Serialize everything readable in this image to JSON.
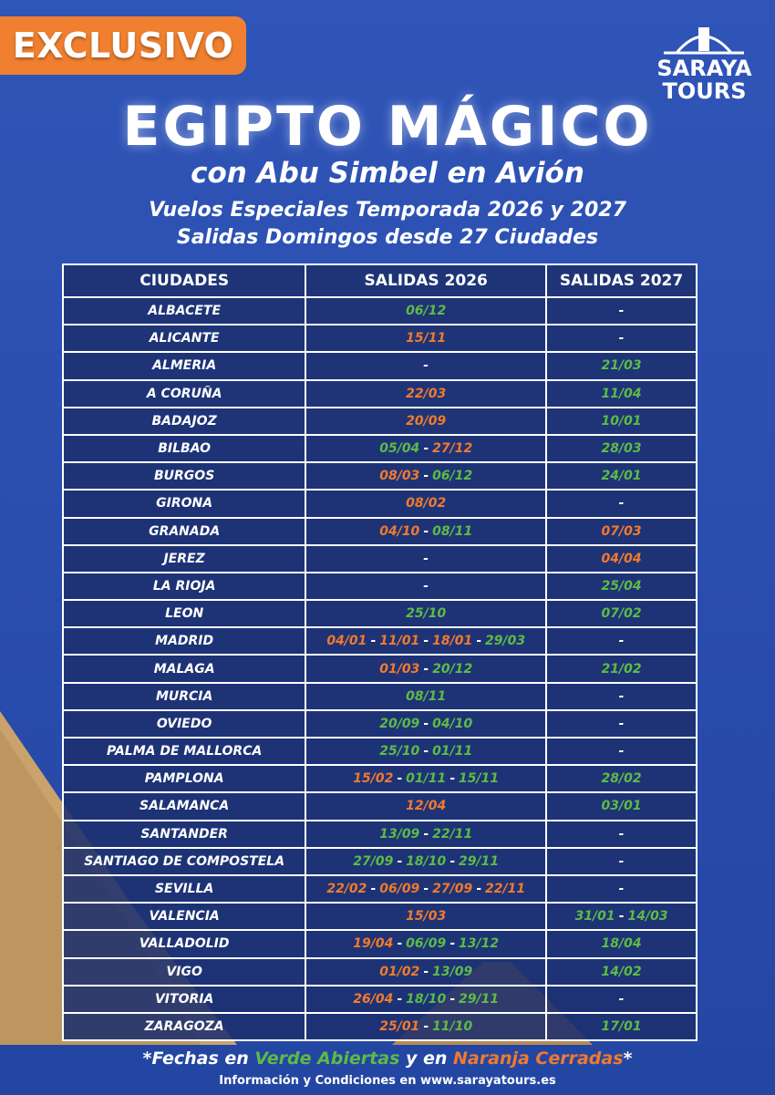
{
  "badge": "EXCLUSIVO",
  "logo": {
    "line1": "SARAYA",
    "line2": "TOURS"
  },
  "header": {
    "title": "EGIPTO MÁGICO",
    "subtitle": "con Abu Simbel en Avión",
    "line1": "Vuelos Especiales Temporada 2026 y 2027",
    "line2": "Salidas Domingos desde 27 Ciudades"
  },
  "table": {
    "headers": [
      "CIUDADES",
      "SALIDAS 2026",
      "SALIDAS 2027"
    ],
    "separator": "-",
    "rows": [
      {
        "city": "ALBACETE",
        "s2026": [
          [
            "06/12",
            "#5dbb46"
          ]
        ],
        "s2027": [
          [
            "-",
            "#ffffff"
          ]
        ]
      },
      {
        "city": "ALICANTE",
        "s2026": [
          [
            "15/11",
            "#f07a2e"
          ]
        ],
        "s2027": [
          [
            "-",
            "#ffffff"
          ]
        ]
      },
      {
        "city": "ALMERIA",
        "s2026": [
          [
            "-",
            "#ffffff"
          ]
        ],
        "s2027": [
          [
            "21/03",
            "#5dbb46"
          ]
        ]
      },
      {
        "city": "A CORUÑA",
        "s2026": [
          [
            "22/03",
            "#f07a2e"
          ]
        ],
        "s2027": [
          [
            "11/04",
            "#5dbb46"
          ]
        ]
      },
      {
        "city": "BADAJOZ",
        "s2026": [
          [
            "20/09",
            "#f07a2e"
          ]
        ],
        "s2027": [
          [
            "10/01",
            "#5dbb46"
          ]
        ]
      },
      {
        "city": "BILBAO",
        "s2026": [
          [
            "05/04",
            "#5dbb46"
          ],
          [
            "27/12",
            "#f07a2e"
          ]
        ],
        "s2027": [
          [
            "28/03",
            "#5dbb46"
          ]
        ]
      },
      {
        "city": "BURGOS",
        "s2026": [
          [
            "08/03",
            "#f07a2e"
          ],
          [
            "06/12",
            "#5dbb46"
          ]
        ],
        "s2027": [
          [
            "24/01",
            "#5dbb46"
          ]
        ]
      },
      {
        "city": "GIRONA",
        "s2026": [
          [
            "08/02",
            "#f07a2e"
          ]
        ],
        "s2027": [
          [
            "-",
            "#ffffff"
          ]
        ]
      },
      {
        "city": "GRANADA",
        "s2026": [
          [
            "04/10",
            "#f07a2e"
          ],
          [
            "08/11",
            "#5dbb46"
          ]
        ],
        "s2027": [
          [
            "07/03",
            "#f07a2e"
          ]
        ]
      },
      {
        "city": "JEREZ",
        "s2026": [
          [
            "-",
            "#ffffff"
          ]
        ],
        "s2027": [
          [
            "04/04",
            "#f07a2e"
          ]
        ]
      },
      {
        "city": "LA RIOJA",
        "s2026": [
          [
            "-",
            "#ffffff"
          ]
        ],
        "s2027": [
          [
            "25/04",
            "#5dbb46"
          ]
        ]
      },
      {
        "city": "LEON",
        "s2026": [
          [
            "25/10",
            "#5dbb46"
          ]
        ],
        "s2027": [
          [
            "07/02",
            "#5dbb46"
          ]
        ]
      },
      {
        "city": "MADRID",
        "s2026": [
          [
            "04/01",
            "#f07a2e"
          ],
          [
            "11/01",
            "#f07a2e"
          ],
          [
            "18/01",
            "#f07a2e"
          ],
          [
            "29/03",
            "#5dbb46"
          ]
        ],
        "s2027": [
          [
            "-",
            "#ffffff"
          ]
        ]
      },
      {
        "city": "MALAGA",
        "s2026": [
          [
            "01/03",
            "#f07a2e"
          ],
          [
            "20/12",
            "#5dbb46"
          ]
        ],
        "s2027": [
          [
            "21/02",
            "#5dbb46"
          ]
        ]
      },
      {
        "city": "MURCIA",
        "s2026": [
          [
            "08/11",
            "#5dbb46"
          ]
        ],
        "s2027": [
          [
            "-",
            "#ffffff"
          ]
        ]
      },
      {
        "city": "OVIEDO",
        "s2026": [
          [
            "20/09",
            "#5dbb46"
          ],
          [
            "04/10",
            "#5dbb46"
          ]
        ],
        "s2027": [
          [
            "-",
            "#ffffff"
          ]
        ]
      },
      {
        "city": "PALMA DE  MALLORCA",
        "s2026": [
          [
            "25/10",
            "#5dbb46"
          ],
          [
            "01/11",
            "#5dbb46"
          ]
        ],
        "s2027": [
          [
            "-",
            "#ffffff"
          ]
        ]
      },
      {
        "city": "PAMPLONA",
        "s2026": [
          [
            "15/02",
            "#f07a2e"
          ],
          [
            "01/11",
            "#5dbb46"
          ],
          [
            "15/11",
            "#5dbb46"
          ]
        ],
        "s2027": [
          [
            "28/02",
            "#5dbb46"
          ]
        ]
      },
      {
        "city": "SALAMANCA",
        "s2026": [
          [
            "12/04",
            "#f07a2e"
          ]
        ],
        "s2027": [
          [
            "03/01",
            "#5dbb46"
          ]
        ]
      },
      {
        "city": "SANTANDER",
        "s2026": [
          [
            "13/09",
            "#5dbb46"
          ],
          [
            "22/11",
            "#5dbb46"
          ]
        ],
        "s2027": [
          [
            "-",
            "#ffffff"
          ]
        ]
      },
      {
        "city": "SANTIAGO DE COMPOSTELA",
        "s2026": [
          [
            "27/09",
            "#5dbb46"
          ],
          [
            "18/10",
            "#5dbb46"
          ],
          [
            "29/11",
            "#5dbb46"
          ]
        ],
        "s2027": [
          [
            "-",
            "#ffffff"
          ]
        ]
      },
      {
        "city": "SEVILLA",
        "s2026": [
          [
            "22/02",
            "#f07a2e"
          ],
          [
            "06/09",
            "#f07a2e"
          ],
          [
            "27/09",
            "#f07a2e"
          ],
          [
            "22/11",
            "#f07a2e"
          ]
        ],
        "s2027": [
          [
            "-",
            "#ffffff"
          ]
        ]
      },
      {
        "city": "VALENCIA",
        "s2026": [
          [
            "15/03",
            "#f07a2e"
          ]
        ],
        "s2027": [
          [
            "31/01",
            "#5dbb46"
          ],
          [
            "14/03",
            "#5dbb46"
          ]
        ]
      },
      {
        "city": "VALLADOLID",
        "s2026": [
          [
            "19/04",
            "#f07a2e"
          ],
          [
            "06/09",
            "#5dbb46"
          ],
          [
            "13/12",
            "#5dbb46"
          ]
        ],
        "s2027": [
          [
            "18/04",
            "#5dbb46"
          ]
        ]
      },
      {
        "city": "VIGO",
        "s2026": [
          [
            "01/02",
            "#f07a2e"
          ],
          [
            "13/09",
            "#5dbb46"
          ]
        ],
        "s2027": [
          [
            "14/02",
            "#5dbb46"
          ]
        ]
      },
      {
        "city": "VITORIA",
        "s2026": [
          [
            "26/04",
            "#f07a2e"
          ],
          [
            "18/10",
            "#5dbb46"
          ],
          [
            "29/11",
            "#5dbb46"
          ]
        ],
        "s2027": [
          [
            "-",
            "#ffffff"
          ]
        ]
      },
      {
        "city": "ZARAGOZA",
        "s2026": [
          [
            "25/01",
            "#f07a2e"
          ],
          [
            "11/10",
            "#5dbb46"
          ]
        ],
        "s2027": [
          [
            "17/01",
            "#5dbb46"
          ]
        ]
      }
    ]
  },
  "footer": {
    "note": [
      [
        "*Fechas en ",
        "#ffffff"
      ],
      [
        "Verde Abiertas",
        "#5dbb46"
      ],
      [
        " y en ",
        "#ffffff"
      ],
      [
        "Naranja Cerradas",
        "#f07a2e"
      ],
      [
        "*",
        "#ffffff"
      ]
    ],
    "info": "Información y Condiciones en www.sarayatours.es"
  }
}
